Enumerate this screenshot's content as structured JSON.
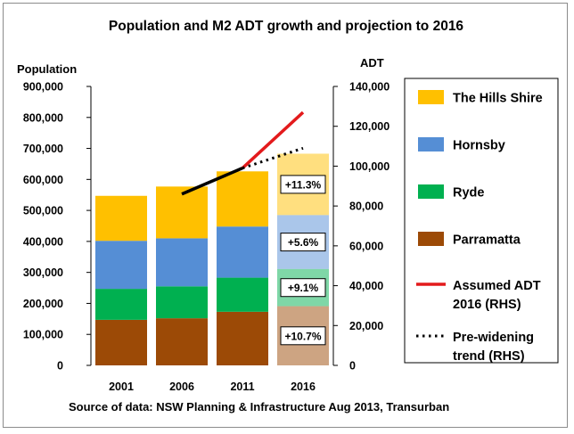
{
  "chart_data": {
    "type": "bar",
    "title": "Population and  M2 ADT growth and projection to 2016",
    "ylabel_left": "Population",
    "ylabel_right": "ADT",
    "source": "Source of data: NSW Planning & Infrastructure Aug 2013, Transurban",
    "categories": [
      "2001",
      "2006",
      "2011",
      "2016"
    ],
    "ylim_left": [
      0,
      900000
    ],
    "yticks_left": [
      "0",
      "100,000",
      "200,000",
      "300,000",
      "400,000",
      "500,000",
      "600,000",
      "700,000",
      "800,000",
      "900,000"
    ],
    "ylim_right": [
      0,
      140000
    ],
    "yticks_right": [
      "0",
      "20,000",
      "40,000",
      "60,000",
      "80,000",
      "100,000",
      "120,000",
      "140,000"
    ],
    "stacked": true,
    "series": [
      {
        "name": "Parramatta",
        "color": "#9c4a06",
        "values": [
          147000,
          152000,
          173000,
          191000
        ],
        "growth_label": "+10.7%"
      },
      {
        "name": "Ryde",
        "color": "#00b050",
        "values": [
          100000,
          103000,
          110000,
          120000
        ],
        "growth_label": "+9.1%"
      },
      {
        "name": "Hornsby",
        "color": "#558ed5",
        "values": [
          155000,
          155000,
          165000,
          174000
        ],
        "growth_label": "+5.6%"
      },
      {
        "name": "The Hills Shire",
        "color": "#ffc000",
        "values": [
          145000,
          167000,
          178000,
          198000
        ],
        "growth_label": "+11.3%"
      }
    ],
    "projection_category": "2016",
    "lines": [
      {
        "name": "M2 ADT",
        "color": "#000000",
        "style": "solid",
        "axis": "right",
        "x": [
          "2006",
          "2011"
        ],
        "values": [
          86000,
          99000
        ]
      },
      {
        "name": "Assumed ADT 2016 (RHS)",
        "color": "#e31a1c",
        "style": "solid",
        "axis": "right",
        "x": [
          "2011",
          "2016"
        ],
        "values": [
          99000,
          127000
        ]
      },
      {
        "name": "Pre-widening trend (RHS)",
        "color": "#000000",
        "style": "dotted",
        "axis": "right",
        "x": [
          "2011",
          "2016"
        ],
        "values": [
          99000,
          109000
        ]
      }
    ],
    "legend": {
      "position": "right",
      "entries": [
        {
          "label": "The Hills Shire",
          "kind": "patch",
          "color": "#ffc000"
        },
        {
          "label": "Hornsby",
          "kind": "patch",
          "color": "#558ed5"
        },
        {
          "label": "Ryde",
          "kind": "patch",
          "color": "#00b050"
        },
        {
          "label": "Parramatta",
          "kind": "patch",
          "color": "#9c4a06"
        },
        {
          "label": "Assumed ADT 2016 (RHS)",
          "kind": "line",
          "color": "#e31a1c"
        },
        {
          "label": "Pre-widening trend (RHS)",
          "kind": "dotted",
          "color": "#000000"
        }
      ]
    }
  }
}
